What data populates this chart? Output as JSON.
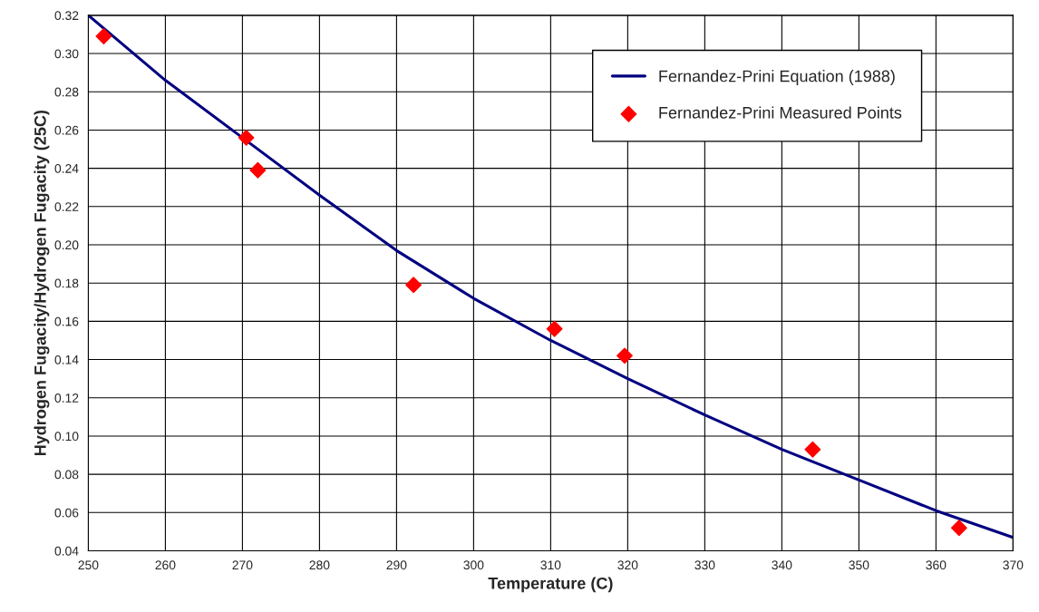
{
  "chart_data": {
    "type": "line",
    "xlabel": "Temperature (C)",
    "ylabel": "Hydrogen Fugacity/Hydrogen Fugacity (25C)",
    "xlim": [
      250,
      370
    ],
    "xticks": [
      250,
      260,
      270,
      280,
      290,
      300,
      310,
      320,
      330,
      340,
      350,
      360,
      370
    ],
    "ylim": [
      0.04,
      0.32
    ],
    "yticks": [
      {
        "value": 0.04,
        "label": "0.04"
      },
      {
        "value": 0.06,
        "label": "0.06"
      },
      {
        "value": 0.08,
        "label": "0.08"
      },
      {
        "value": 0.1,
        "label": "0.10"
      },
      {
        "value": 0.12,
        "label": "0.12"
      },
      {
        "value": 0.14,
        "label": "0.14"
      },
      {
        "value": 0.16,
        "label": "0.16"
      },
      {
        "value": 0.18,
        "label": "0.18"
      },
      {
        "value": 0.2,
        "label": "0.20"
      },
      {
        "value": 0.22,
        "label": "0.22"
      },
      {
        "value": 0.24,
        "label": "0.24"
      },
      {
        "value": 0.26,
        "label": "0.26"
      },
      {
        "value": 0.28,
        "label": "0.28"
      },
      {
        "value": 0.3,
        "label": "0.30"
      },
      {
        "value": 0.32,
        "label": "0.32"
      }
    ],
    "grid": true,
    "legend": "top right",
    "series": [
      {
        "name": "Fernandez-Prini Equation (1988)",
        "color": "#000080",
        "marker": "none",
        "line_style": "solid",
        "x": [
          250,
          260,
          270,
          280,
          290,
          300,
          310,
          320,
          330,
          340,
          350,
          360,
          370
        ],
        "values": [
          0.32,
          0.286,
          0.256,
          0.226,
          0.197,
          0.172,
          0.15,
          0.13,
          0.111,
          0.093,
          0.077,
          0.061,
          0.047
        ]
      },
      {
        "name": "Fernandez-Prini Measured Points",
        "type": "scatter",
        "color": "#ff0000",
        "marker": "diamond",
        "x": [
          252,
          270.5,
          272,
          292.2,
          310.5,
          319.6,
          344,
          363
        ],
        "values": [
          0.309,
          0.256,
          0.239,
          0.179,
          0.156,
          0.142,
          0.093,
          0.052
        ]
      }
    ]
  }
}
